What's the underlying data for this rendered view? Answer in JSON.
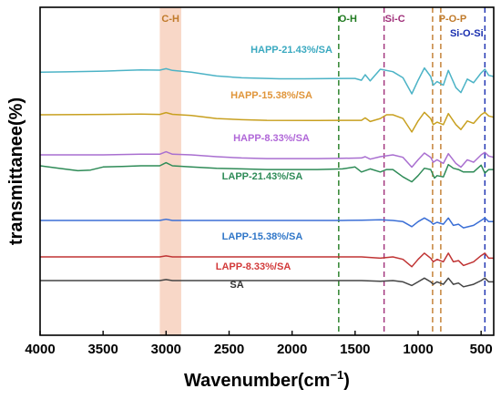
{
  "chart_data": {
    "type": "line",
    "title": "",
    "xlabel": "Wavenumber(cm",
    "xlabel_sup": "−1",
    "xlabel_close": ")",
    "ylabel": "transmittanee(%)",
    "xlim": [
      4000,
      400
    ],
    "x_reversed": true,
    "x_ticks": [
      "4000",
      "3500",
      "3000",
      "2500",
      "2000",
      "1500",
      "1000",
      "500"
    ],
    "y_ticks_shown": false,
    "grid": false,
    "band_highlight": {
      "label": "C-H",
      "range": [
        3050,
        2880
      ],
      "color": "#f6c9b4",
      "label_color": "#c07a2a"
    },
    "markers": [
      {
        "label": "O-H",
        "x": 1630,
        "color": "#1f7a1f"
      },
      {
        "label": "Si-C",
        "x": 1270,
        "color": "#a0307a"
      },
      {
        "label": "P-O-P",
        "x": 885,
        "color": "#c07a2a"
      },
      {
        "label": "",
        "x": 820,
        "color": "#c07a2a"
      },
      {
        "label": "Si-O-Si",
        "x": 470,
        "color": "#1a2fb0"
      }
    ],
    "series": [
      {
        "name": "HAPP-21.43%/SA",
        "color": "#4cb3c6",
        "label_color": "#3aa9c0",
        "points": [
          [
            4000,
            0.6
          ],
          [
            3800,
            0.8
          ],
          [
            3500,
            1.4
          ],
          [
            3200,
            2.4
          ],
          [
            3050,
            2.2
          ],
          [
            3000,
            3.4
          ],
          [
            2950,
            2.0
          ],
          [
            2800,
            0.5
          ],
          [
            2600,
            -2.5
          ],
          [
            2400,
            -4.0
          ],
          [
            2100,
            -4.8
          ],
          [
            1900,
            -4.8
          ],
          [
            1700,
            -4.6
          ],
          [
            1500,
            -4.5
          ],
          [
            1450,
            -6.0
          ],
          [
            1420,
            -1.5
          ],
          [
            1380,
            -6.5
          ],
          [
            1300,
            3.0
          ],
          [
            1200,
            1.0
          ],
          [
            1120,
            -4.0
          ],
          [
            1050,
            -17.0
          ],
          [
            1000,
            -6.0
          ],
          [
            950,
            4.0
          ],
          [
            900,
            -3.0
          ],
          [
            880,
            -10.0
          ],
          [
            850,
            -7.0
          ],
          [
            800,
            -10.0
          ],
          [
            760,
            2.0
          ],
          [
            700,
            -12.0
          ],
          [
            660,
            -16.0
          ],
          [
            610,
            -5.0
          ],
          [
            560,
            -8.0
          ],
          [
            500,
            0.0
          ],
          [
            470,
            3.0
          ],
          [
            440,
            -2.0
          ],
          [
            400,
            -3.0
          ]
        ]
      },
      {
        "name": "HAPP-15.38%/SA",
        "color": "#c8a020",
        "label_color": "#e0953a",
        "points": [
          [
            4000,
            0.0
          ],
          [
            3500,
            0.3
          ],
          [
            3200,
            0.5
          ],
          [
            3050,
            0.3
          ],
          [
            3000,
            1.8
          ],
          [
            2950,
            0.4
          ],
          [
            2800,
            -0.5
          ],
          [
            2600,
            -3.0
          ],
          [
            2400,
            -4.0
          ],
          [
            2200,
            -4.5
          ],
          [
            1800,
            -4.6
          ],
          [
            1600,
            -4.5
          ],
          [
            1450,
            -4.5
          ],
          [
            1420,
            -2.5
          ],
          [
            1380,
            -5.5
          ],
          [
            1300,
            -3.0
          ],
          [
            1250,
            0.0
          ],
          [
            1200,
            0.0
          ],
          [
            1120,
            -3.0
          ],
          [
            1050,
            -14.0
          ],
          [
            1000,
            -5.0
          ],
          [
            950,
            2.0
          ],
          [
            900,
            -3.0
          ],
          [
            880,
            -8.0
          ],
          [
            850,
            -6.0
          ],
          [
            800,
            -8.0
          ],
          [
            760,
            1.0
          ],
          [
            700,
            -8.0
          ],
          [
            660,
            -12.0
          ],
          [
            610,
            -5.0
          ],
          [
            560,
            -7.0
          ],
          [
            500,
            0.0
          ],
          [
            470,
            2.0
          ],
          [
            440,
            -1.0
          ],
          [
            400,
            -2.0
          ]
        ]
      },
      {
        "name": "HAPP-8.33%/SA",
        "color": "#a96fd0",
        "label_color": "#b067d8",
        "points": [
          [
            4000,
            0.0
          ],
          [
            3500,
            0.0
          ],
          [
            3200,
            0.5
          ],
          [
            3050,
            0.5
          ],
          [
            3000,
            2.5
          ],
          [
            2950,
            0.5
          ],
          [
            2800,
            0.0
          ],
          [
            2600,
            -1.5
          ],
          [
            2400,
            -2.5
          ],
          [
            2200,
            -3.0
          ],
          [
            1800,
            -3.0
          ],
          [
            1600,
            -2.8
          ],
          [
            1450,
            -2.5
          ],
          [
            1420,
            -1.5
          ],
          [
            1380,
            -3.5
          ],
          [
            1300,
            -1.5
          ],
          [
            1200,
            0.0
          ],
          [
            1120,
            -2.0
          ],
          [
            1050,
            -10.0
          ],
          [
            1000,
            -4.0
          ],
          [
            950,
            1.5
          ],
          [
            900,
            -2.0
          ],
          [
            880,
            -6.0
          ],
          [
            850,
            -4.0
          ],
          [
            800,
            -7.0
          ],
          [
            760,
            1.0
          ],
          [
            700,
            -7.0
          ],
          [
            660,
            -10.0
          ],
          [
            610,
            -4.0
          ],
          [
            560,
            -6.0
          ],
          [
            500,
            0.0
          ],
          [
            470,
            2.0
          ],
          [
            440,
            -1.0
          ],
          [
            400,
            -2.0
          ]
        ]
      },
      {
        "name": "LAPP-21.43%/SA",
        "color": "#2e8b57",
        "label_color": "#2e8b57",
        "points": [
          [
            4000,
            0.0
          ],
          [
            3850,
            -2.0
          ],
          [
            3700,
            -4.0
          ],
          [
            3600,
            -3.5
          ],
          [
            3500,
            -1.0
          ],
          [
            3350,
            -0.5
          ],
          [
            3200,
            0.0
          ],
          [
            3050,
            0.0
          ],
          [
            3000,
            2.5
          ],
          [
            2950,
            0.0
          ],
          [
            2800,
            -1.0
          ],
          [
            2600,
            -2.0
          ],
          [
            2400,
            -2.5
          ],
          [
            2200,
            -3.0
          ],
          [
            2000,
            -3.0
          ],
          [
            1800,
            -3.0
          ],
          [
            1600,
            -2.5
          ],
          [
            1500,
            -1.0
          ],
          [
            1450,
            -5.0
          ],
          [
            1380,
            -2.5
          ],
          [
            1300,
            -5.0
          ],
          [
            1250,
            -3.0
          ],
          [
            1200,
            -3.0
          ],
          [
            1120,
            -9.0
          ],
          [
            1050,
            -13.0
          ],
          [
            1000,
            -8.0
          ],
          [
            950,
            -2.0
          ],
          [
            900,
            -3.0
          ],
          [
            870,
            -10.0
          ],
          [
            850,
            -8.0
          ],
          [
            800,
            -9.0
          ],
          [
            760,
            1.0
          ],
          [
            720,
            -2.0
          ],
          [
            680,
            -3.0
          ],
          [
            640,
            -5.0
          ],
          [
            560,
            -5.0
          ],
          [
            500,
            0.5
          ],
          [
            470,
            -6.0
          ],
          [
            440,
            -3.0
          ],
          [
            400,
            -3.0
          ]
        ]
      },
      {
        "name": "LAPP-15.38%/SA",
        "color": "#3b6fd6",
        "label_color": "#2f76c8",
        "points": [
          [
            4000,
            0.0
          ],
          [
            3500,
            0.0
          ],
          [
            3050,
            0.0
          ],
          [
            3000,
            1.0
          ],
          [
            2950,
            0.0
          ],
          [
            2500,
            0.0
          ],
          [
            2000,
            0.0
          ],
          [
            1600,
            0.0
          ],
          [
            1450,
            0.2
          ],
          [
            1300,
            0.5
          ],
          [
            1200,
            0.0
          ],
          [
            1120,
            -1.0
          ],
          [
            1050,
            -5.0
          ],
          [
            1000,
            -1.0
          ],
          [
            950,
            2.0
          ],
          [
            900,
            -1.0
          ],
          [
            880,
            -3.0
          ],
          [
            850,
            -1.5
          ],
          [
            800,
            -3.0
          ],
          [
            760,
            2.0
          ],
          [
            720,
            -4.0
          ],
          [
            680,
            -3.0
          ],
          [
            640,
            -6.0
          ],
          [
            560,
            -4.0
          ],
          [
            500,
            0.0
          ],
          [
            470,
            2.0
          ],
          [
            440,
            -1.0
          ],
          [
            400,
            -1.0
          ]
        ]
      },
      {
        "name": "LAPP-8.33%/SA",
        "color": "#c03434",
        "label_color": "#d23a3a",
        "points": [
          [
            4000,
            0.0
          ],
          [
            3500,
            0.0
          ],
          [
            3050,
            0.0
          ],
          [
            3000,
            0.8
          ],
          [
            2950,
            0.0
          ],
          [
            2500,
            0.0
          ],
          [
            2000,
            0.0
          ],
          [
            1600,
            0.0
          ],
          [
            1450,
            0.0
          ],
          [
            1300,
            -1.0
          ],
          [
            1200,
            0.0
          ],
          [
            1120,
            -2.0
          ],
          [
            1050,
            -8.0
          ],
          [
            1000,
            -2.0
          ],
          [
            950,
            3.0
          ],
          [
            900,
            -1.0
          ],
          [
            880,
            -4.0
          ],
          [
            850,
            -2.0
          ],
          [
            800,
            -4.0
          ],
          [
            760,
            3.0
          ],
          [
            720,
            -4.0
          ],
          [
            680,
            -3.0
          ],
          [
            640,
            -7.0
          ],
          [
            560,
            -4.0
          ],
          [
            500,
            1.0
          ],
          [
            470,
            3.0
          ],
          [
            440,
            -1.0
          ],
          [
            400,
            -1.0
          ]
        ]
      },
      {
        "name": "SA",
        "color": "#444444",
        "label_color": "#333333",
        "points": [
          [
            4000,
            0.0
          ],
          [
            3500,
            0.0
          ],
          [
            3050,
            0.0
          ],
          [
            3000,
            0.8
          ],
          [
            2950,
            0.0
          ],
          [
            2500,
            0.0
          ],
          [
            2000,
            0.0
          ],
          [
            1600,
            0.0
          ],
          [
            1450,
            0.0
          ],
          [
            1300,
            -0.5
          ],
          [
            1200,
            0.0
          ],
          [
            1120,
            -1.0
          ],
          [
            1050,
            -4.0
          ],
          [
            1000,
            -1.0
          ],
          [
            950,
            2.0
          ],
          [
            900,
            -1.0
          ],
          [
            880,
            -3.0
          ],
          [
            850,
            -1.0
          ],
          [
            800,
            -3.0
          ],
          [
            760,
            2.0
          ],
          [
            720,
            -3.0
          ],
          [
            680,
            -2.0
          ],
          [
            640,
            -5.0
          ],
          [
            560,
            -3.0
          ],
          [
            500,
            0.0
          ],
          [
            470,
            2.0
          ],
          [
            440,
            -1.0
          ],
          [
            400,
            -1.0
          ]
        ]
      }
    ]
  }
}
